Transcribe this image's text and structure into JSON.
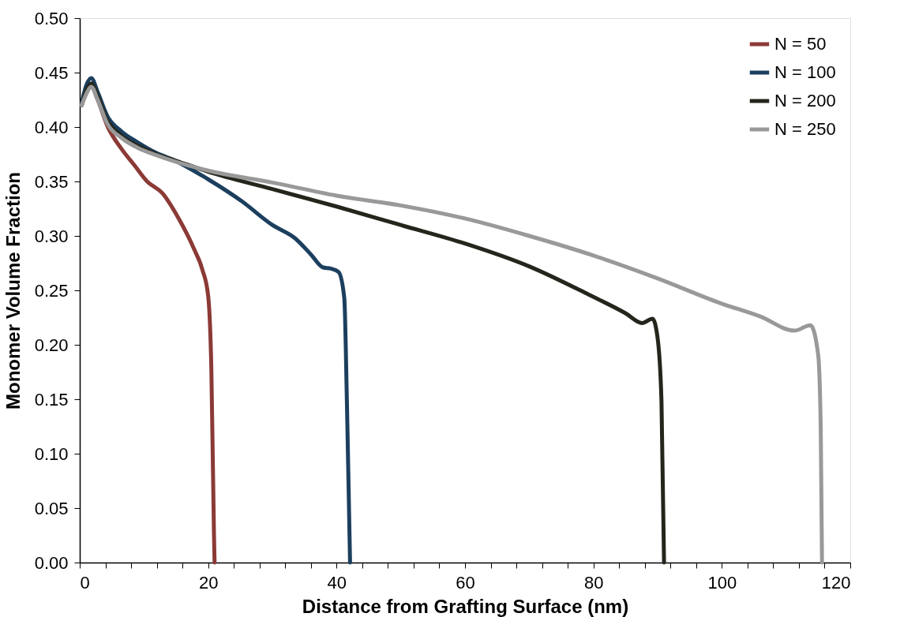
{
  "chart_data": {
    "type": "line",
    "xlabel": "Distance from Grafting Surface (nm)",
    "ylabel": "Monomer Volume Fraction",
    "xlim": [
      0,
      120
    ],
    "ylim": [
      0,
      0.5
    ],
    "xticks": [
      0,
      {
        "value": 4,
        "label": null
      },
      {
        "value": 8,
        "label": null
      },
      {
        "value": 12,
        "label": null
      },
      {
        "value": 16,
        "label": null
      },
      20,
      {
        "value": 24,
        "label": null
      },
      {
        "value": 28,
        "label": null
      },
      {
        "value": 32,
        "label": null
      },
      {
        "value": 36,
        "label": null
      },
      40,
      {
        "value": 44,
        "label": null
      },
      {
        "value": 48,
        "label": null
      },
      {
        "value": 52,
        "label": null
      },
      {
        "value": 56,
        "label": null
      },
      60,
      {
        "value": 64,
        "label": null
      },
      {
        "value": 68,
        "label": null
      },
      {
        "value": 72,
        "label": null
      },
      {
        "value": 76,
        "label": null
      },
      80,
      {
        "value": 84,
        "label": null
      },
      {
        "value": 88,
        "label": null
      },
      {
        "value": 92,
        "label": null
      },
      {
        "value": 96,
        "label": null
      },
      100,
      {
        "value": 104,
        "label": null
      },
      {
        "value": 108,
        "label": null
      },
      {
        "value": 112,
        "label": null
      },
      {
        "value": 116,
        "label": null
      },
      120
    ],
    "yticks": [
      {
        "value": 0,
        "label": "0.00"
      },
      {
        "value": 0.05,
        "label": "0.05"
      },
      {
        "value": 0.1,
        "label": "0.10"
      },
      {
        "value": 0.15,
        "label": "0.15"
      },
      {
        "value": 0.2,
        "label": "0.20"
      },
      {
        "value": 0.25,
        "label": "0.25"
      },
      {
        "value": 0.3,
        "label": "0.30"
      },
      {
        "value": 0.35,
        "label": "0.35"
      },
      {
        "value": 0.4,
        "label": "0.40"
      },
      {
        "value": 0.45,
        "label": "0.45"
      },
      {
        "value": 0.5,
        "label": "0.50"
      }
    ],
    "grid": false,
    "legend": "top right",
    "marker": "none",
    "line_style": "solid",
    "series": [
      {
        "name": "N = 50",
        "color": "#8b3a36",
        "x": [
          0.3,
          1.0,
          1.8,
          2.8,
          4.3,
          6.5,
          8.5,
          10.5,
          12.9,
          15.5,
          17.8,
          19.1,
          20.0,
          20.5,
          20.9,
          21.0
        ],
        "values": [
          0.42,
          0.432,
          0.437,
          0.425,
          0.401,
          0.38,
          0.365,
          0.35,
          0.339,
          0.315,
          0.288,
          0.269,
          0.245,
          0.177,
          0.028,
          0
        ]
      },
      {
        "name": "N = 100",
        "color": "#1c3f5e",
        "x": [
          0.3,
          1.0,
          1.8,
          2.8,
          4.3,
          6.5,
          9.0,
          12.0,
          14.5,
          20.0,
          25.2,
          30.0,
          33.5,
          36.0,
          37.9,
          39.1,
          40.3,
          41.2,
          41.6,
          42.0,
          42.1
        ],
        "values": [
          0.422,
          0.438,
          0.445,
          0.432,
          0.41,
          0.396,
          0.386,
          0.376,
          0.37,
          0.352,
          0.332,
          0.31,
          0.298,
          0.283,
          0.271,
          0.27,
          0.267,
          0.243,
          0.15,
          0.03,
          0
        ]
      },
      {
        "name": "N = 200",
        "color": "#24261c",
        "x": [
          0.3,
          1.0,
          1.8,
          2.8,
          4.3,
          6.5,
          9.0,
          12.0,
          15.0,
          20.0,
          30.0,
          40.0,
          50.0,
          60.0,
          70.0,
          79.3,
          85.0,
          87.6,
          89.2,
          90.0,
          90.6,
          91.0
        ],
        "values": [
          0.42,
          0.433,
          0.44,
          0.428,
          0.406,
          0.392,
          0.383,
          0.375,
          0.369,
          0.359,
          0.343,
          0.327,
          0.31,
          0.293,
          0.272,
          0.246,
          0.229,
          0.22,
          0.224,
          0.206,
          0.148,
          0
        ]
      },
      {
        "name": "N = 250",
        "color": "#999999",
        "x": [
          0.3,
          1.0,
          1.8,
          2.8,
          4.3,
          6.5,
          9.0,
          12.0,
          15.0,
          20.0,
          30.0,
          40.0,
          50.0,
          60.0,
          70.0,
          80.0,
          90.0,
          99.9,
          106.0,
          111.3,
          113.8,
          115.0,
          115.4,
          115.6
        ],
        "values": [
          0.42,
          0.43,
          0.437,
          0.425,
          0.403,
          0.39,
          0.381,
          0.374,
          0.368,
          0.36,
          0.349,
          0.337,
          0.328,
          0.316,
          0.3,
          0.282,
          0.261,
          0.238,
          0.226,
          0.213,
          0.218,
          0.191,
          0.124,
          0
        ]
      }
    ]
  }
}
